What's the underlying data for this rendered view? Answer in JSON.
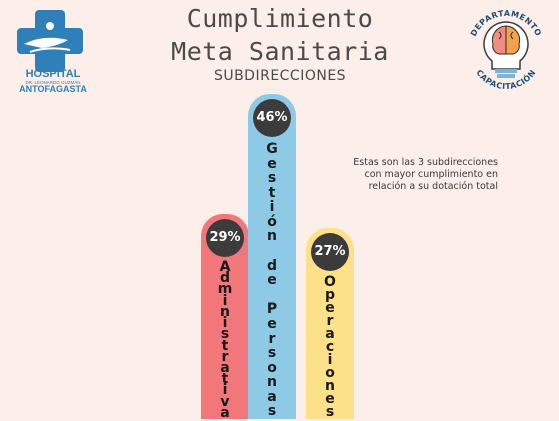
{
  "header": {
    "title_line1": "Cumplimiento",
    "title_line2": "Meta Sanitaria",
    "subtitle": "SUBDIRECCIONES"
  },
  "note": {
    "line1": "Estas son las 3 subdirecciones",
    "line2": "con mayor cumplimiento en",
    "line3": "relación a su dotación total"
  },
  "logos": {
    "hospital_line1": "HOSPITAL",
    "hospital_line2": "DR. LEONARDO GUZMÁN",
    "hospital_line3": "ANTOFAGASTA",
    "dep_top": "DEPARTAMENTO",
    "dep_bottom": "CAPACITACIÓN"
  },
  "colors": {
    "background": "#fcefe9",
    "hospital_blue": "#2f7fb8",
    "bar_red": "#f2777a",
    "bar_blue": "#8ecae6",
    "bar_yellow": "#fde08a",
    "badge": "#3b3b3b"
  },
  "chart_data": {
    "type": "bar",
    "categories": [
      "Administrativa",
      "Gestión de Personas",
      "Operaciones"
    ],
    "values": [
      29,
      46,
      27
    ],
    "value_labels": [
      "29%",
      "46%",
      "27%"
    ],
    "colors": [
      "#f2777a",
      "#8ecae6",
      "#fde08a"
    ],
    "unit": "%"
  }
}
